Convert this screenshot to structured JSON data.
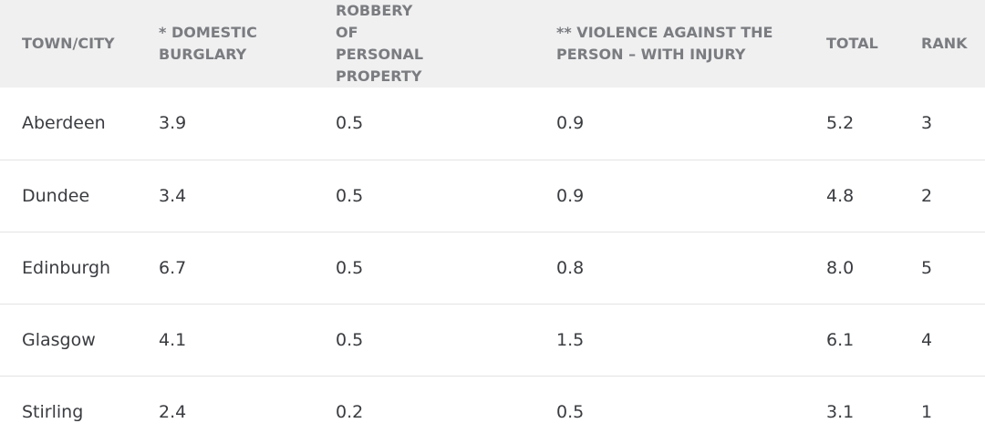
{
  "table": {
    "headers": [
      "TOWN/CITY",
      "* DOMESTIC BURGLARY",
      "ROBBERY OF PERSONAL PROPERTY",
      "** VIOLENCE AGAINST THE PERSON – WITH INJURY",
      "TOTAL",
      "RANK"
    ],
    "rows": [
      [
        "Aberdeen",
        "3.9",
        "0.5",
        "0.9",
        "5.2",
        "3"
      ],
      [
        "Dundee",
        "3.4",
        "0.5",
        "0.9",
        "4.8",
        "2"
      ],
      [
        "Edinburgh",
        "6.7",
        "0.5",
        "0.8",
        "8.0",
        "5"
      ],
      [
        "Glasgow",
        "4.1",
        "0.5",
        "1.5",
        "6.1",
        "4"
      ],
      [
        "Stirling",
        "2.4",
        "0.2",
        "0.5",
        "3.1",
        "1"
      ]
    ]
  }
}
